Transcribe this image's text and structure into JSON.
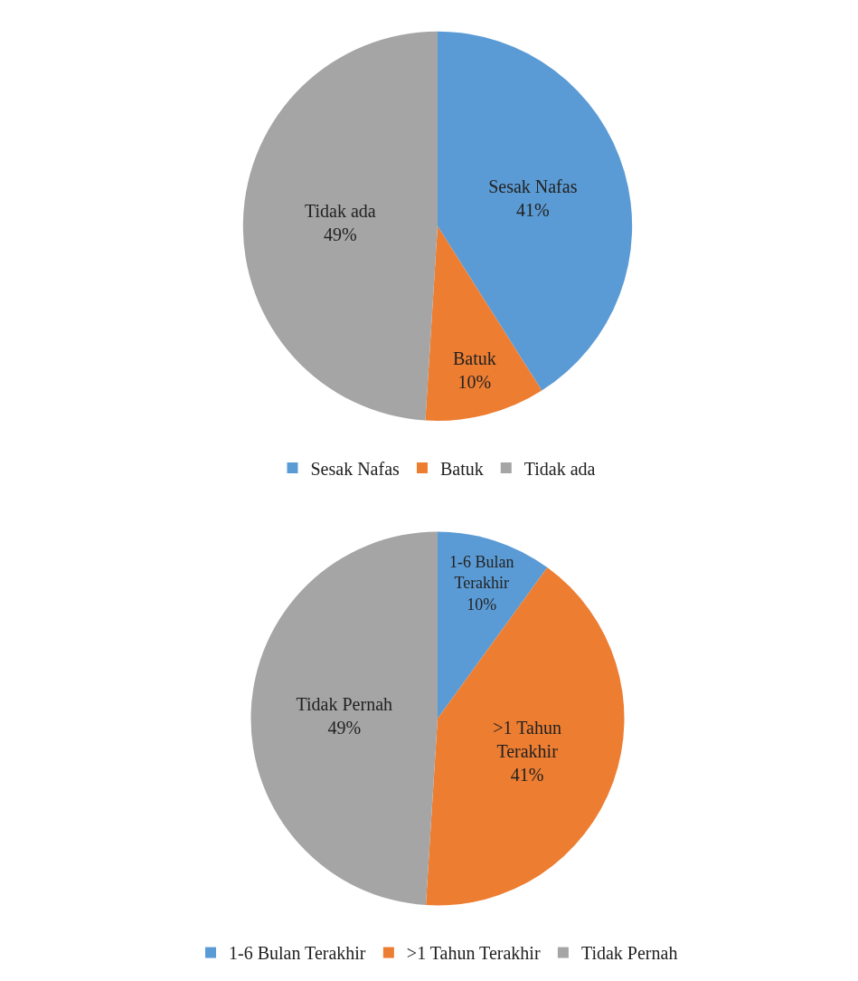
{
  "chart_data": [
    {
      "type": "pie",
      "categories": [
        "Sesak Nafas",
        "Batuk",
        "Tidak ada"
      ],
      "values": [
        41,
        10,
        49
      ],
      "value_labels": [
        "41%",
        "10%",
        "49%"
      ],
      "colors": [
        "#5b9bd5",
        "#ed7d31",
        "#a5a5a5"
      ],
      "legend": "bottom"
    },
    {
      "type": "pie",
      "categories": [
        "1-6 Bulan Terakhir",
        ">1 Tahun Terakhir",
        "Tidak Pernah"
      ],
      "values": [
        10,
        41,
        49
      ],
      "value_labels": [
        "10%",
        "41%",
        "49%"
      ],
      "colors": [
        "#5b9bd5",
        "#ed7d31",
        "#a5a5a5"
      ],
      "legend": "bottom"
    }
  ]
}
